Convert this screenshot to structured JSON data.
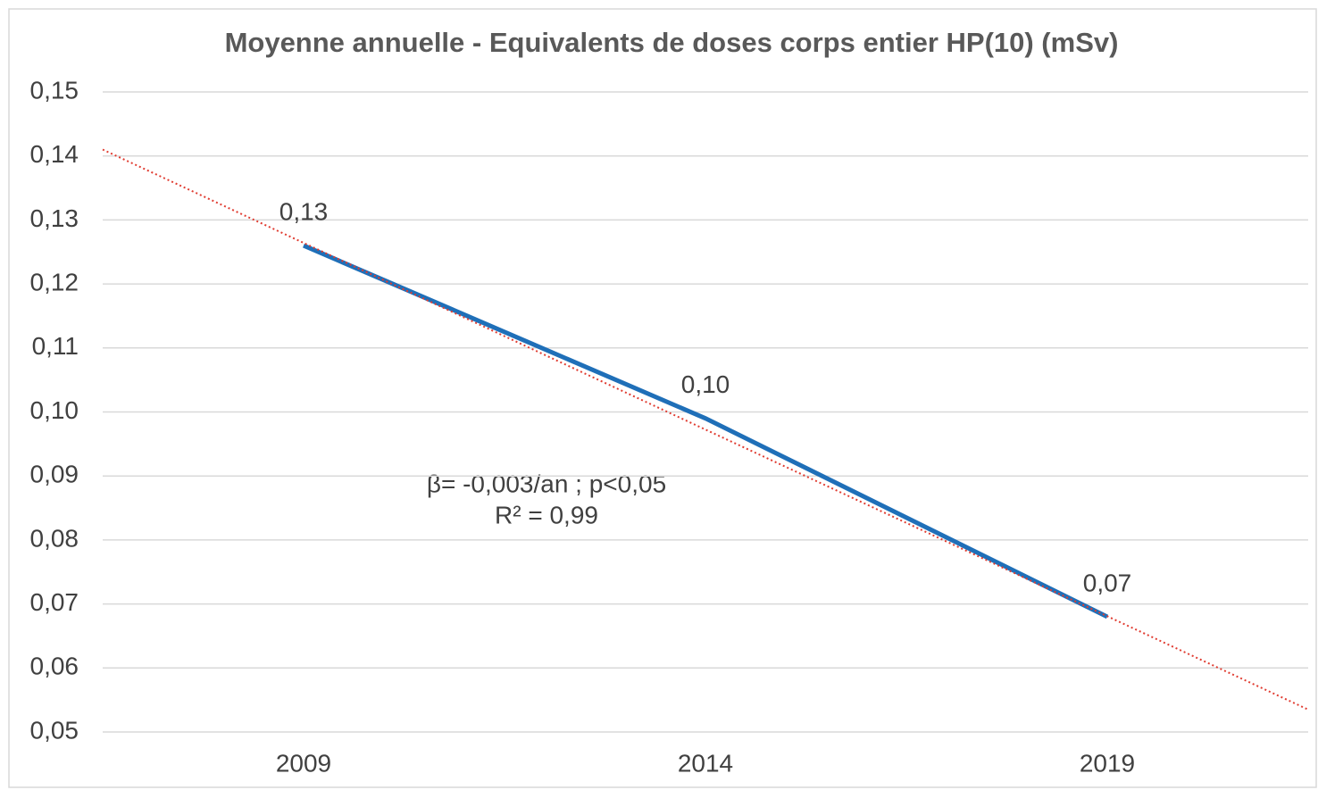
{
  "chart_data": {
    "type": "line",
    "title": "Moyenne annuelle - Equivalents de doses corps entier HP(10) (mSv)",
    "categories": [
      "2009",
      "2014",
      "2019"
    ],
    "series": [
      {
        "name": null,
        "color": "#1f6fb8",
        "values": [
          0.126,
          0.099,
          0.068
        ],
        "value_labels": [
          "0,13",
          "0,10",
          "0,07"
        ]
      }
    ],
    "ylim": [
      0.05,
      0.15
    ],
    "yticks": [
      {
        "value": 0.05,
        "label": "0,05"
      },
      {
        "value": 0.06,
        "label": "0,06"
      },
      {
        "value": 0.07,
        "label": "0,07"
      },
      {
        "value": 0.08,
        "label": "0,08"
      },
      {
        "value": 0.09,
        "label": "0,09"
      },
      {
        "value": 0.1,
        "label": "0,10"
      },
      {
        "value": 0.11,
        "label": "0,11"
      },
      {
        "value": 0.12,
        "label": "0,12"
      },
      {
        "value": 0.13,
        "label": "0,13"
      },
      {
        "value": 0.14,
        "label": "0,14"
      },
      {
        "value": 0.15,
        "label": "0,15"
      }
    ],
    "grid": true,
    "trendline": {
      "color": "#e03c31",
      "values": [
        0.141,
        0.0535
      ]
    },
    "annotations": [
      "β= -0,003/an ; p<0,05",
      "R² = 0,99"
    ]
  }
}
